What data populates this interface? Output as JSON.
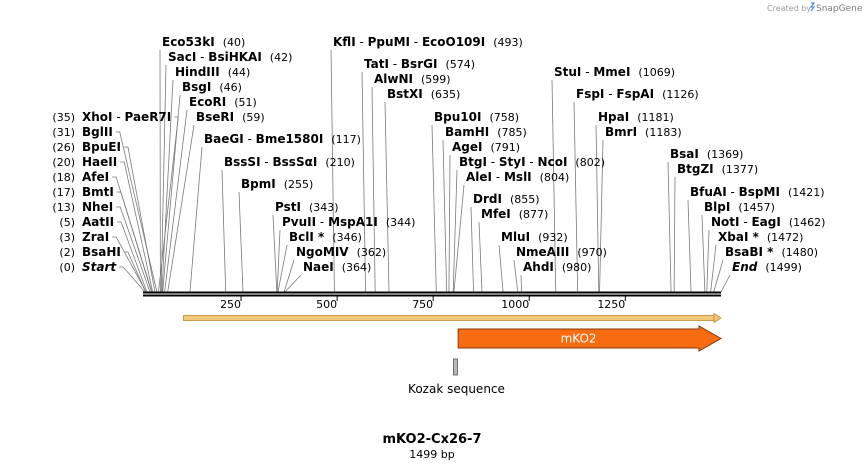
{
  "header": {
    "credit_text": "Created by",
    "brand": "SnapGene"
  },
  "map": {
    "title": "mKO2-Cx26-7",
    "length_text": "1499 bp",
    "total_bp": 1499,
    "axis_ticks": [
      "250",
      "500",
      "750",
      "1000",
      "1250"
    ],
    "axis_tick_values": [
      250,
      500,
      750,
      1000,
      1250
    ]
  },
  "left_sites": [
    {
      "enzymes": [
        "Start"
      ],
      "position": 0,
      "label_pos": "(0)",
      "italic": true
    },
    {
      "enzymes": [
        "BsaHI"
      ],
      "position": 2,
      "label_pos": "(2)"
    },
    {
      "enzymes": [
        "ZraI"
      ],
      "position": 3,
      "label_pos": "(3)"
    },
    {
      "enzymes": [
        "AatII"
      ],
      "position": 5,
      "label_pos": "(5)"
    },
    {
      "enzymes": [
        "NheI"
      ],
      "position": 13,
      "label_pos": "(13)"
    },
    {
      "enzymes": [
        "BmtI"
      ],
      "position": 17,
      "label_pos": "(17)"
    },
    {
      "enzymes": [
        "AfeI"
      ],
      "position": 18,
      "label_pos": "(18)"
    },
    {
      "enzymes": [
        "HaeII"
      ],
      "position": 20,
      "label_pos": "(20)"
    },
    {
      "enzymes": [
        "BpuEI"
      ],
      "position": 26,
      "label_pos": "(26)"
    },
    {
      "enzymes": [
        "BglII"
      ],
      "position": 31,
      "label_pos": "(31)"
    },
    {
      "enzymes": [
        "XhoI",
        "PaeR7I"
      ],
      "position": 35,
      "label_pos": "(35)"
    }
  ],
  "right_sites": [
    {
      "enzymes": [
        "Eco53kI"
      ],
      "position": 40,
      "label_pos": "(40)"
    },
    {
      "enzymes": [
        "SacI",
        "BsiHKAI"
      ],
      "position": 42,
      "label_pos": "(42)"
    },
    {
      "enzymes": [
        "HindIII"
      ],
      "position": 44,
      "label_pos": "(44)"
    },
    {
      "enzymes": [
        "BsgI"
      ],
      "position": 46,
      "label_pos": "(46)"
    },
    {
      "enzymes": [
        "EcoRI"
      ],
      "position": 51,
      "label_pos": "(51)"
    },
    {
      "enzymes": [
        "BseRI"
      ],
      "position": 59,
      "label_pos": "(59)"
    },
    {
      "enzymes": [
        "BaeGI",
        "Bme1580I"
      ],
      "position": 117,
      "label_pos": "(117)"
    },
    {
      "enzymes": [
        "BssSI",
        "BssSαI"
      ],
      "position": 210,
      "label_pos": "(210)"
    },
    {
      "enzymes": [
        "BpmI"
      ],
      "position": 255,
      "label_pos": "(255)"
    },
    {
      "enzymes": [
        "PstI"
      ],
      "position": 343,
      "label_pos": "(343)"
    },
    {
      "enzymes": [
        "PvuII",
        "MspA1I"
      ],
      "position": 344,
      "label_pos": "(344)"
    },
    {
      "enzymes": [
        "BclI *"
      ],
      "position": 346,
      "label_pos": "(346)"
    },
    {
      "enzymes": [
        "NgoMIV"
      ],
      "position": 362,
      "label_pos": "(362)"
    },
    {
      "enzymes": [
        "NaeI"
      ],
      "position": 364,
      "label_pos": "(364)"
    },
    {
      "enzymes": [
        "KflI",
        "PpuMI",
        "EcoO109I"
      ],
      "position": 493,
      "label_pos": "(493)"
    },
    {
      "enzymes": [
        "TatI",
        "BsrGI"
      ],
      "position": 574,
      "label_pos": "(574)"
    },
    {
      "enzymes": [
        "AlwNI"
      ],
      "position": 599,
      "label_pos": "(599)"
    },
    {
      "enzymes": [
        "BstXI"
      ],
      "position": 635,
      "label_pos": "(635)"
    },
    {
      "enzymes": [
        "Bpu10I"
      ],
      "position": 758,
      "label_pos": "(758)"
    },
    {
      "enzymes": [
        "BamHI"
      ],
      "position": 785,
      "label_pos": "(785)"
    },
    {
      "enzymes": [
        "AgeI"
      ],
      "position": 791,
      "label_pos": "(791)"
    },
    {
      "enzymes": [
        "BtgI",
        "StyI",
        "NcoI"
      ],
      "position": 802,
      "label_pos": "(802)"
    },
    {
      "enzymes": [
        "AleI",
        "MslI"
      ],
      "position": 804,
      "label_pos": "(804)"
    },
    {
      "enzymes": [
        "DrdI"
      ],
      "position": 855,
      "label_pos": "(855)"
    },
    {
      "enzymes": [
        "MfeI"
      ],
      "position": 877,
      "label_pos": "(877)"
    },
    {
      "enzymes": [
        "MluI"
      ],
      "position": 932,
      "label_pos": "(932)"
    },
    {
      "enzymes": [
        "NmeAIII"
      ],
      "position": 970,
      "label_pos": "(970)"
    },
    {
      "enzymes": [
        "AhdI"
      ],
      "position": 980,
      "label_pos": "(980)"
    },
    {
      "enzymes": [
        "StuI",
        "MmeI"
      ],
      "position": 1069,
      "label_pos": "(1069)"
    },
    {
      "enzymes": [
        "FspI",
        "FspAI"
      ],
      "position": 1126,
      "label_pos": "(1126)"
    },
    {
      "enzymes": [
        "HpaI"
      ],
      "position": 1181,
      "label_pos": "(1181)"
    },
    {
      "enzymes": [
        "BmrI"
      ],
      "position": 1183,
      "label_pos": "(1183)"
    },
    {
      "enzymes": [
        "BsaI"
      ],
      "position": 1369,
      "label_pos": "(1369)"
    },
    {
      "enzymes": [
        "BtgZI"
      ],
      "position": 1377,
      "label_pos": "(1377)"
    },
    {
      "enzymes": [
        "BfuAI",
        "BspMI"
      ],
      "position": 1421,
      "label_pos": "(1421)"
    },
    {
      "enzymes": [
        "BlpI"
      ],
      "position": 1457,
      "label_pos": "(1457)"
    },
    {
      "enzymes": [
        "NotI",
        "EagI"
      ],
      "position": 1462,
      "label_pos": "(1462)"
    },
    {
      "enzymes": [
        "XbaI *"
      ],
      "position": 1472,
      "label_pos": "(1472)"
    },
    {
      "enzymes": [
        "BsaBI *"
      ],
      "position": 1480,
      "label_pos": "(1480)"
    },
    {
      "enzymes": [
        "End"
      ],
      "position": 1499,
      "label_pos": "(1499)",
      "italic": true
    }
  ],
  "features": [
    {
      "name": "mKO2",
      "start": 815,
      "end": 1499,
      "direction": "forward",
      "color": "#f76b11",
      "label": "mKO2"
    },
    {
      "name": "Kozak sequence",
      "start": 808,
      "end": 815,
      "color": "#b8b8b8",
      "label": "Kozak sequence"
    }
  ],
  "orf": {
    "start": 100,
    "end": 1499,
    "direction": "forward",
    "color": "#f1c77a"
  }
}
